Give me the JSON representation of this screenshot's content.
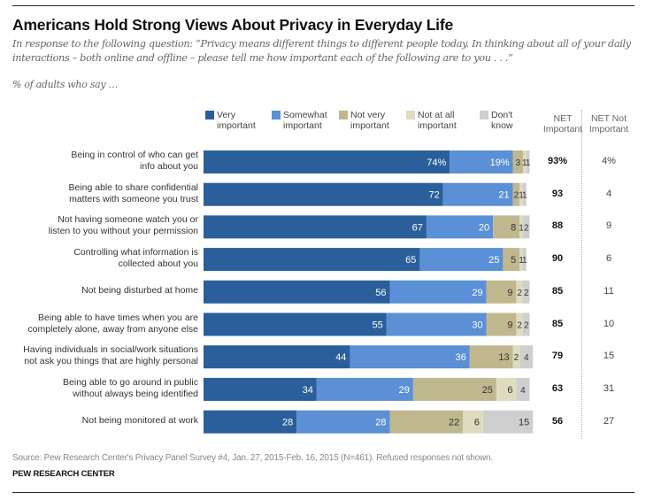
{
  "colors": {
    "very_important": "#2a5f9b",
    "somewhat_important": "#5b8fd6",
    "not_very_important": "#bfb88f",
    "not_at_all_important": "#dedbbf",
    "dont_know": "#cfcfcf"
  },
  "chart_data": {
    "type": "bar",
    "orientation": "horizontal",
    "stacked": true,
    "title": "Americans Hold Strong Views About Privacy in Everyday Life",
    "subtitle": "In response to the following question: “Privacy means different things to different people today. In thinking about all of your daily interactions – both online and offline – please tell me how important each of the following are to you . . .”",
    "unit_label": "% of adults who say …",
    "xlabel": "",
    "ylabel": "",
    "xlim": [
      0,
      100
    ],
    "grid": false,
    "legend_position": "top",
    "categories": [
      "Being in control of who can get info about you",
      "Being able to share confidential matters with someone you trust",
      "Not having someone watch you or listen to you without your permission",
      "Controlling what information is collected about you",
      "Not being disturbed at home",
      "Being able to have times when you are completely alone, away from anyone else",
      "Having individuals in social/work situations not ask you things that are highly personal",
      "Being able to go around in public without always being identified",
      "Not being monitored at work"
    ],
    "category_lines": [
      [
        "Being in control of who can get",
        "info about you"
      ],
      [
        "Being able to share confidential",
        "matters with someone you trust"
      ],
      [
        "Not having someone watch you or",
        "listen to you without your permission"
      ],
      [
        "Controlling what information is",
        "collected about you"
      ],
      [
        "Not being disturbed at home"
      ],
      [
        "Being able to have times when you are",
        "completely alone, away from anyone else"
      ],
      [
        "Having individuals in social/work situations",
        "not ask you things that are highly personal"
      ],
      [
        "Being able to go around in public",
        "without always being identified"
      ],
      [
        "Not being monitored at work"
      ]
    ],
    "series": [
      {
        "key": "very_important",
        "name": "Very important",
        "legend_lines": [
          "Very",
          "important"
        ],
        "values": [
          74,
          72,
          67,
          65,
          56,
          55,
          44,
          34,
          28
        ],
        "label_color": "#ffffff"
      },
      {
        "key": "somewhat_important",
        "name": "Somewhat important",
        "legend_lines": [
          "Somewhat",
          "important"
        ],
        "values": [
          19,
          21,
          20,
          25,
          29,
          30,
          36,
          29,
          28
        ],
        "label_color": "#ffffff"
      },
      {
        "key": "not_very_important",
        "name": "Not very important",
        "legend_lines": [
          "Not very",
          "important"
        ],
        "values": [
          3,
          2,
          8,
          5,
          9,
          9,
          13,
          25,
          22
        ],
        "label_color": "#333333"
      },
      {
        "key": "not_at_all_important",
        "name": "Not at all important",
        "legend_lines": [
          "Not at all",
          "important"
        ],
        "values": [
          1,
          1,
          1,
          1,
          2,
          2,
          2,
          6,
          6
        ],
        "label_color": "#333333"
      },
      {
        "key": "dont_know",
        "name": "Don't know",
        "legend_lines": [
          "Don't",
          "know"
        ],
        "values": [
          1,
          1,
          2,
          1,
          2,
          2,
          4,
          4,
          15
        ],
        "label_color": "#333333"
      }
    ],
    "first_row_percent_suffix": true,
    "net_columns": [
      {
        "name": "NET Important",
        "header_lines": [
          "NET",
          "Important"
        ],
        "values": [
          "93%",
          "93",
          "88",
          "90",
          "85",
          "85",
          "79",
          "63",
          "56"
        ],
        "bold": true
      },
      {
        "name": "NET Not Important",
        "header_lines": [
          "NET Not",
          "Important"
        ],
        "values": [
          "4%",
          "4",
          "9",
          "6",
          "11",
          "10",
          "15",
          "31",
          "27"
        ],
        "bold": false
      }
    ]
  },
  "footer": {
    "source": "Source: Pew Research Center's Privacy Panel Survey #4, Jan. 27, 2015-Feb. 16, 2015 (N=461). Refused responses not shown.",
    "organization": "PEW RESEARCH CENTER"
  }
}
